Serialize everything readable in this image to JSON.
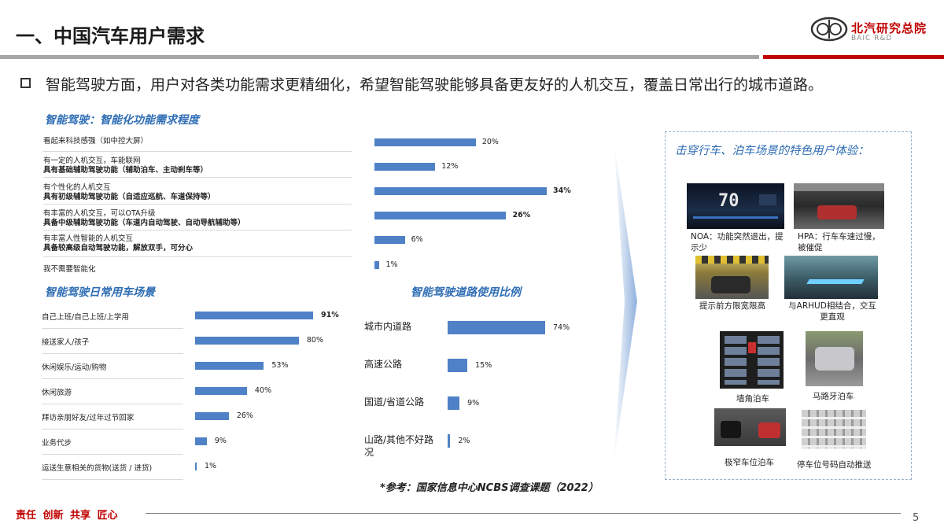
{
  "header": {
    "title": "一、中国汽车用户需求",
    "logo_cn": "北汽研究总院",
    "logo_en": "BAIC R&D"
  },
  "headline": "智能驾驶方面，用户对各类功能需求更精细化，希望智能驾驶能够具备更友好的人机交互，覆盖日常出行的城市道路。",
  "demand": {
    "title": "智能驾驶：智能化功能需求程度",
    "items": [
      {
        "line1": "看起来科技感强（如中控大屏）",
        "line2": "",
        "value": "20%"
      },
      {
        "line1": "有一定的人机交互，车能联网",
        "line2": "具有基础辅助驾驶功能（辅助泊车、主动刹车等）",
        "value": "12%"
      },
      {
        "line1": "有个性化的人机交互",
        "line2": "具有初级辅助驾驶功能（自适应巡航、车道保持等）",
        "value": "34%"
      },
      {
        "line1": "有丰富的人机交互，可以OTA升级",
        "line2": "具备中级辅助驾驶功能（车道内自动驾驶、自动导航辅助等）",
        "value": "26%"
      },
      {
        "line1": "有丰富人性智能的人机交互",
        "line2": "具备较高级自动驾驶功能，解放双手，可分心",
        "value": "6%"
      },
      {
        "line1": "我不需要智能化",
        "line2": "",
        "value": "1%"
      }
    ]
  },
  "scenes": {
    "title": "智能驾驶日常用车场景",
    "items": [
      {
        "label": "自己上班/自己上班/上学用",
        "value": "91%"
      },
      {
        "label": "接送家人/孩子",
        "value": "80%"
      },
      {
        "label": "休闲娱乐/运动/购物",
        "value": "53%"
      },
      {
        "label": "休闲旅游",
        "value": "40%"
      },
      {
        "label": "拜访亲朋好友/过年过节回家",
        "value": "26%"
      },
      {
        "label": "业务代步",
        "value": "9%"
      },
      {
        "label": "运送生意相关的货物(送货 / 进货)",
        "value": "1%"
      }
    ]
  },
  "roads": {
    "title": "智能驾驶道路使用比例",
    "items": [
      {
        "label": "城市内道路",
        "value": "74%"
      },
      {
        "label": "高速公路",
        "value": "15%"
      },
      {
        "label": "国道/省道公路",
        "value": "9%"
      },
      {
        "label": "山路/其他不好路况",
        "value": "2%"
      }
    ]
  },
  "chart_data": [
    {
      "type": "bar",
      "title": "智能驾驶：智能化功能需求程度",
      "categories": [
        "看起来科技感强（如中控大屏）",
        "有一定的人机交互，车能联网 具有基础辅助驾驶功能（辅助泊车、主动刹车等）",
        "有个性化的人机交互 具有初级辅助驾驶功能（自适应巡航、车道保持等）",
        "有丰富的人机交互，可以OTA升级 具备中级辅助驾驶功能（车道内自动驾驶、自动导航辅助等）",
        "有丰富人性智能的人机交互 具备较高级自动驾驶功能，解放双手，可分心",
        "我不需要智能化"
      ],
      "values": [
        20,
        12,
        34,
        26,
        6,
        1
      ],
      "unit": "%"
    },
    {
      "type": "bar",
      "title": "智能驾驶日常用车场景",
      "categories": [
        "自己上班/自己上班/上学用",
        "接送家人/孩子",
        "休闲娱乐/运动/购物",
        "休闲旅游",
        "拜访亲朋好友/过年过节回家",
        "业务代步",
        "运送生意相关的货物(送货 / 进货)"
      ],
      "values": [
        91,
        80,
        53,
        40,
        26,
        9,
        1
      ],
      "unit": "%"
    },
    {
      "type": "bar",
      "title": "智能驾驶道路使用比例",
      "categories": [
        "城市内道路",
        "高速公路",
        "国道/省道公路",
        "山路/其他不好路况"
      ],
      "values": [
        74,
        15,
        9,
        2
      ],
      "unit": "%"
    }
  ],
  "experience": {
    "title": "击穿行车、泊车场景的特色用户体验：",
    "cap_noa": "NOA：功能突然退出，提示少",
    "cap_hpa": "HPA：行车车速过慢，被催促",
    "cap_limit": "提示前方限宽限高",
    "cap_arhud": "与ARHUD相结合，交互更直观",
    "cap_corner": "墙角泊车",
    "cap_curb": "马路牙泊车",
    "cap_narrow": "极窄车位泊车",
    "cap_push": "停车位号码自动推送",
    "hud_speed": "70"
  },
  "reference": "*参考：国家信息中心NCBS调查课题（2022）",
  "footer": {
    "values": "责任  创新  共享  匠心",
    "page": "5"
  },
  "colors": {
    "accent_blue": "#2e6db4",
    "bar_blue": "#4f81c7",
    "brand_red": "#c00000"
  }
}
